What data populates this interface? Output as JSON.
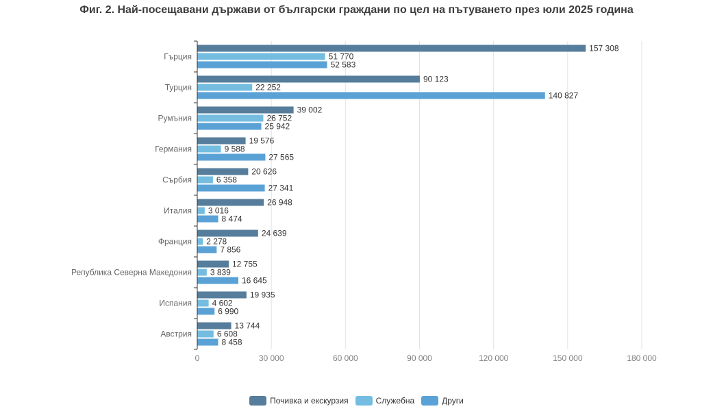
{
  "chart_data": {
    "type": "bar",
    "orientation": "horizontal",
    "title": "Фиг. 2. Най-посещавани държави от български граждани по цел на пътуването през юли 2025 година",
    "categories": [
      "Гърция",
      "Турция",
      "Румъния",
      "Германия",
      "Сърбия",
      "Италия",
      "Франция",
      "Република Северна Македония",
      "Испания",
      "Австрия"
    ],
    "series": [
      {
        "name": "Почивка и екскурзия",
        "color": "#567d9b",
        "values": [
          157308,
          90123,
          39002,
          19576,
          20626,
          26948,
          24639,
          12755,
          19935,
          13744
        ]
      },
      {
        "name": "Служебна",
        "color": "#74bde0",
        "values": [
          51770,
          22252,
          26752,
          9588,
          6358,
          3016,
          2278,
          3839,
          4602,
          6608
        ]
      },
      {
        "name": "Други",
        "color": "#5aa2d6",
        "values": [
          52583,
          140827,
          25942,
          27565,
          27341,
          8474,
          7856,
          16645,
          6990,
          8458
        ]
      }
    ],
    "value_labels": [
      [
        "157 308",
        "90 123",
        "39 002",
        "19 576",
        "20 626",
        "26 948",
        "24 639",
        "12 755",
        "19 935",
        "13 744"
      ],
      [
        "51 770",
        "22 252",
        "26 752",
        "9 588",
        "6 358",
        "3 016",
        "2 278",
        "3 839",
        "4 602",
        "6 608"
      ],
      [
        "52 583",
        "140 827",
        "25 942",
        "27 565",
        "27 341",
        "8 474",
        "7 856",
        "16 645",
        "6 990",
        "8 458"
      ]
    ],
    "xlim": [
      0,
      180000
    ],
    "x_ticks": [
      0,
      30000,
      60000,
      90000,
      120000,
      150000,
      180000
    ],
    "x_tick_labels": [
      "0",
      "30 000",
      "60 000",
      "90 000",
      "120 000",
      "150 000",
      "180 000"
    ],
    "grid": "vertical",
    "legend_position": "bottom-center"
  }
}
